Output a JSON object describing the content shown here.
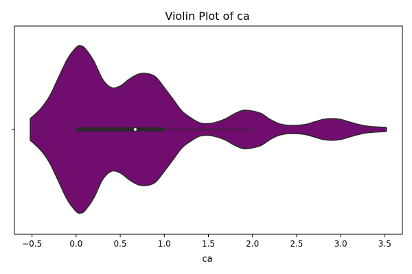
{
  "chart_data": {
    "type": "violin",
    "title": "Violin Plot of ca",
    "xlabel": "ca",
    "ylabel": "",
    "xlim": [
      -0.7,
      3.7
    ],
    "xticks": [
      -0.5,
      0.0,
      0.5,
      1.0,
      1.5,
      2.0,
      2.5,
      3.0,
      3.5
    ],
    "xtick_labels": [
      "−0.5",
      "0.0",
      "0.5",
      "1.0",
      "1.5",
      "2.0",
      "2.5",
      "3.0",
      "3.5"
    ],
    "yticks": [
      ""
    ],
    "grid": false,
    "colors": {
      "fill": "#720D70",
      "outline": "#2a2a2a",
      "box": "#2a2a2a",
      "median": "#ffffff"
    },
    "density": {
      "x": [
        -0.52,
        -0.4,
        -0.3,
        -0.2,
        -0.1,
        0.0,
        0.05,
        0.1,
        0.2,
        0.3,
        0.4,
        0.5,
        0.6,
        0.7,
        0.8,
        0.9,
        1.0,
        1.1,
        1.2,
        1.3,
        1.4,
        1.5,
        1.6,
        1.7,
        1.8,
        1.9,
        2.0,
        2.1,
        2.2,
        2.3,
        2.4,
        2.5,
        2.6,
        2.7,
        2.8,
        2.9,
        3.0,
        3.1,
        3.2,
        3.3,
        3.4,
        3.5,
        3.52
      ],
      "width": [
        0.13,
        0.25,
        0.4,
        0.62,
        0.84,
        0.98,
        1.0,
        0.97,
        0.82,
        0.6,
        0.5,
        0.52,
        0.6,
        0.66,
        0.67,
        0.63,
        0.5,
        0.36,
        0.22,
        0.14,
        0.08,
        0.07,
        0.09,
        0.13,
        0.19,
        0.23,
        0.22,
        0.19,
        0.12,
        0.07,
        0.05,
        0.05,
        0.06,
        0.09,
        0.12,
        0.13,
        0.12,
        0.09,
        0.06,
        0.04,
        0.03,
        0.025,
        0.02
      ]
    },
    "box": {
      "q1": 0.0,
      "median": 0.67,
      "q3": 1.0,
      "whisker_low": 0.0,
      "whisker_high": 2.0
    }
  }
}
